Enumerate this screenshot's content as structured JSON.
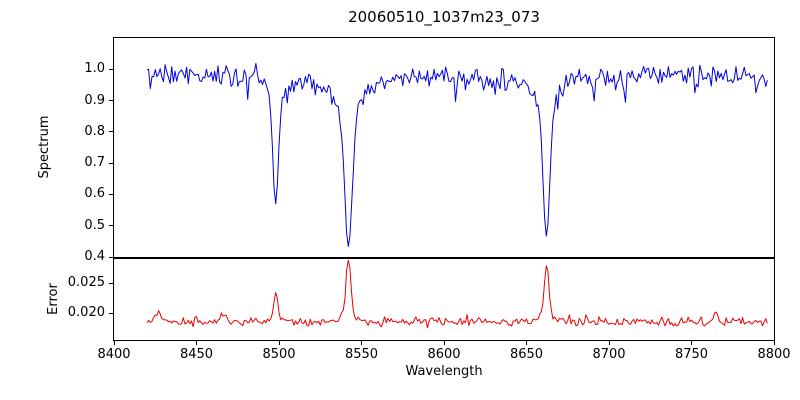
{
  "figure": {
    "background": "#ffffff"
  },
  "chart_data": [
    {
      "id": "spectrum",
      "type": "line",
      "title": "20060510_1037m23_073",
      "ylabel": "Spectrum",
      "line_color": "#0000dd",
      "xlim": [
        8400,
        8800
      ],
      "ylim": [
        0.4,
        1.1
      ],
      "yticks": [
        0.4,
        0.5,
        0.6,
        0.7,
        0.8,
        0.9,
        1.0
      ],
      "ytick_labels": [
        "0.4",
        "0.5",
        "0.6",
        "0.7",
        "0.8",
        "0.9",
        "1.0"
      ],
      "x_start": 8420,
      "x_end": 8796,
      "x_step": 1,
      "continuum": 0.975,
      "noise_sd": 0.016,
      "seed": 20060510,
      "absorption_lines": [
        {
          "center": 8498.0,
          "core_depth": 0.34,
          "core_sigma": 1.7,
          "wing_depth": 0.06,
          "wing_sigma": 5.0,
          "min_value": 0.58
        },
        {
          "center": 8542.1,
          "core_depth": 0.42,
          "core_sigma": 2.2,
          "wing_depth": 0.12,
          "wing_sigma": 8.0,
          "min_value": 0.43
        },
        {
          "center": 8662.1,
          "core_depth": 0.42,
          "core_sigma": 2.0,
          "wing_depth": 0.08,
          "wing_sigma": 7.0,
          "min_value": 0.47
        }
      ]
    },
    {
      "id": "error",
      "type": "line",
      "ylabel": "Error",
      "line_color": "#ee0000",
      "xlim": [
        8400,
        8800
      ],
      "ylim": [
        0.0155,
        0.029
      ],
      "yticks": [
        0.02,
        0.025
      ],
      "ytick_labels": [
        "0.020",
        "0.025"
      ],
      "x_start": 8420,
      "x_end": 8796,
      "x_step": 1,
      "baseline": 0.0185,
      "noise_sd": 0.00032,
      "seed": 1037,
      "spikes": [
        {
          "center": 8427.0,
          "height": 0.0018,
          "sigma": 1.5
        },
        {
          "center": 8466.0,
          "height": 0.0008,
          "sigma": 2.0
        },
        {
          "center": 8498.0,
          "height": 0.0045,
          "sigma": 1.2,
          "wing_height": 0.0008,
          "wing_sigma": 4.0,
          "peak_value": 0.023
        },
        {
          "center": 8542.1,
          "height": 0.01,
          "sigma": 1.3,
          "wing_height": 0.0015,
          "wing_sigma": 4.5,
          "peak_value": 0.0285
        },
        {
          "center": 8662.1,
          "height": 0.0085,
          "sigma": 1.3,
          "wing_height": 0.0012,
          "wing_sigma": 4.0,
          "peak_value": 0.027
        },
        {
          "center": 8765.0,
          "height": 0.0015,
          "sigma": 1.2
        }
      ]
    }
  ],
  "axes": {
    "xlabel": "Wavelength",
    "xticks": [
      8400,
      8450,
      8500,
      8550,
      8600,
      8650,
      8700,
      8750,
      8800
    ],
    "xtick_labels": [
      "8400",
      "8450",
      "8500",
      "8550",
      "8600",
      "8650",
      "8700",
      "8750",
      "8800"
    ]
  }
}
